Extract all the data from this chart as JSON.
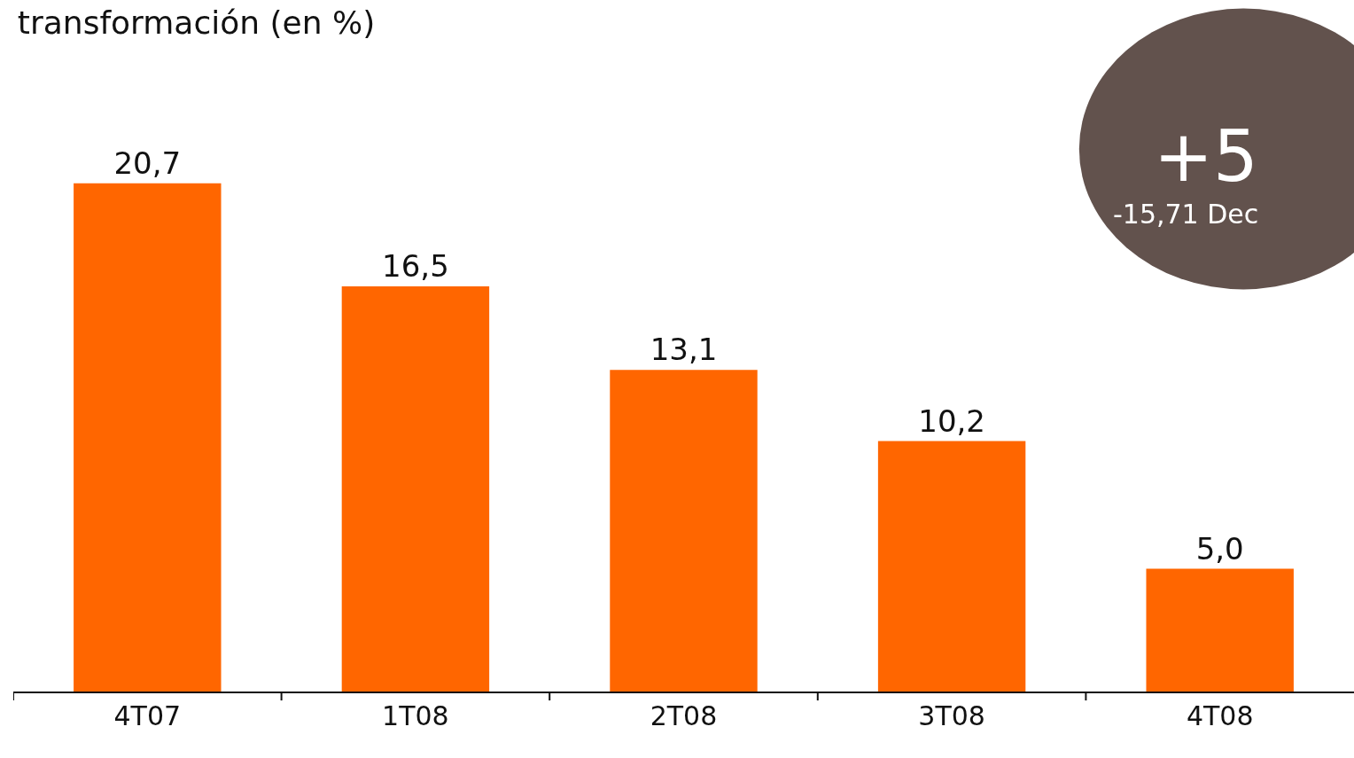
{
  "chart_data": {
    "type": "bar",
    "title": "transformación (en %)",
    "categories": [
      "4T07",
      "1T08",
      "2T08",
      "3T08",
      "4T08"
    ],
    "values": [
      20.7,
      16.5,
      13.1,
      10.2,
      5.0
    ],
    "value_labels": [
      "20,7",
      "16,5",
      "13,1",
      "10,2",
      "5,0"
    ],
    "color": "#ff6600",
    "annotations": [
      "+5",
      "-15,71 Dec"
    ],
    "grid": false,
    "legend": false
  }
}
